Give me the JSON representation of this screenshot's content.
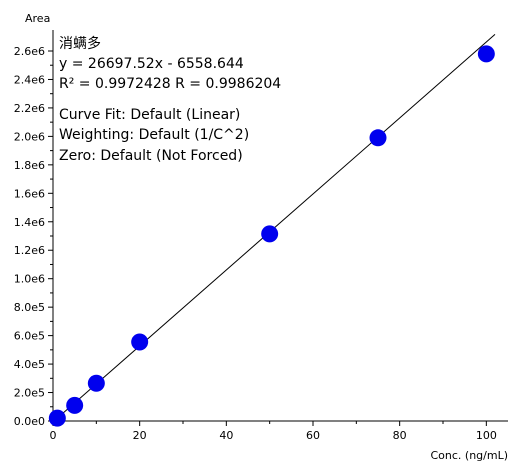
{
  "chart_data": {
    "type": "scatter",
    "xlabel": "Conc. (ng/mL)",
    "ylabel": "Area",
    "xlim": [
      0,
      105
    ],
    "ylim": [
      0,
      2700000
    ],
    "x_ticks": [
      0,
      20,
      40,
      60,
      80,
      100
    ],
    "x_tick_labels": [
      "0",
      "20",
      "40",
      "60",
      "80",
      "100"
    ],
    "y_ticks": [
      0,
      200000,
      400000,
      600000,
      800000,
      1000000,
      1200000,
      1400000,
      1600000,
      1800000,
      2000000,
      2200000,
      2400000,
      2600000
    ],
    "y_tick_labels": [
      "0.0e0",
      "2.0e5",
      "4.0e5",
      "6.0e5",
      "8.0e5",
      "1.0e6",
      "1.2e6",
      "1.4e6",
      "1.6e6",
      "1.8e6",
      "2.0e6",
      "2.2e6",
      "2.4e6",
      "2.6e6"
    ],
    "grid": false,
    "point_color": "#0000ee",
    "points": [
      {
        "x": 1,
        "y": 20000
      },
      {
        "x": 5,
        "y": 110000
      },
      {
        "x": 10,
        "y": 265000
      },
      {
        "x": 20,
        "y": 555000
      },
      {
        "x": 50,
        "y": 1315000
      },
      {
        "x": 75,
        "y": 1990000
      },
      {
        "x": 100,
        "y": 2580000
      }
    ],
    "fit_line": {
      "slope": 26697.52,
      "intercept": -6558.644
    },
    "annotations": [
      "消螨多",
      "y = 26697.52x - 6558.644",
      "R² = 0.9972428    R = 0.9986204",
      "",
      "Curve Fit: Default (Linear)",
      "Weighting: Default (1/C^2)",
      "Zero: Default (Not Forced)"
    ]
  }
}
